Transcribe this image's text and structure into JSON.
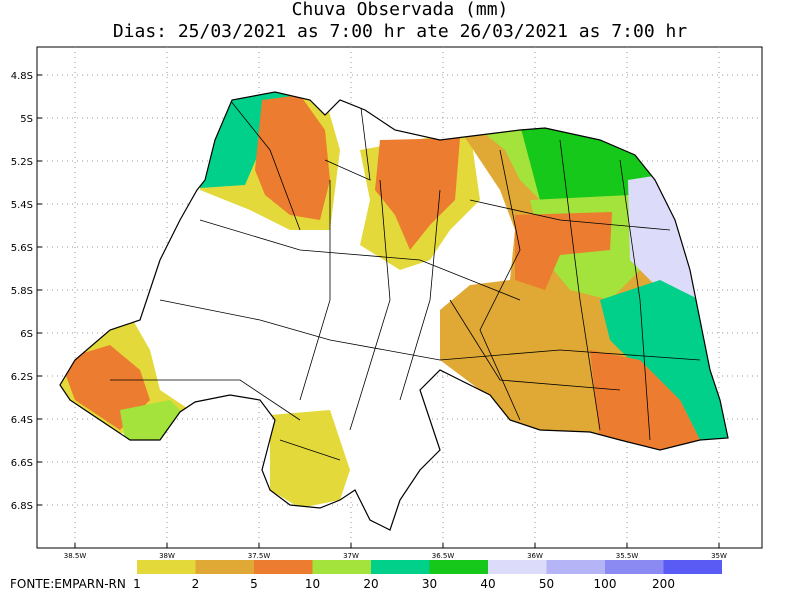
{
  "header": {
    "title": "Chuva Observada (mm)",
    "subtitle": "Dias: 25/03/2021 as 7:00 hr ate 26/03/2021 as 7:00 hr"
  },
  "lat_labels": [
    "4.8S",
    "5S",
    "5.2S",
    "5.4S",
    "5.6S",
    "5.8S",
    "6S",
    "6.2S",
    "6.4S",
    "6.6S",
    "6.8S"
  ],
  "lon_labels": [
    "38.5W",
    "38W",
    "37.5W",
    "37W",
    "36.5W",
    "36W",
    "35.5W",
    "35W"
  ],
  "legend": {
    "labels": [
      "1",
      "2",
      "5",
      "10",
      "20",
      "30",
      "40",
      "50",
      "100",
      "200"
    ],
    "colors": [
      "#e3d93a",
      "#e0a834",
      "#ec7c30",
      "#a4e23c",
      "#00d08a",
      "#16c81a",
      "#dcdcfa",
      "#b4b4f6",
      "#8a8af2",
      "#5a5af4"
    ]
  },
  "source": "FONTE:EMPARN-RN"
}
